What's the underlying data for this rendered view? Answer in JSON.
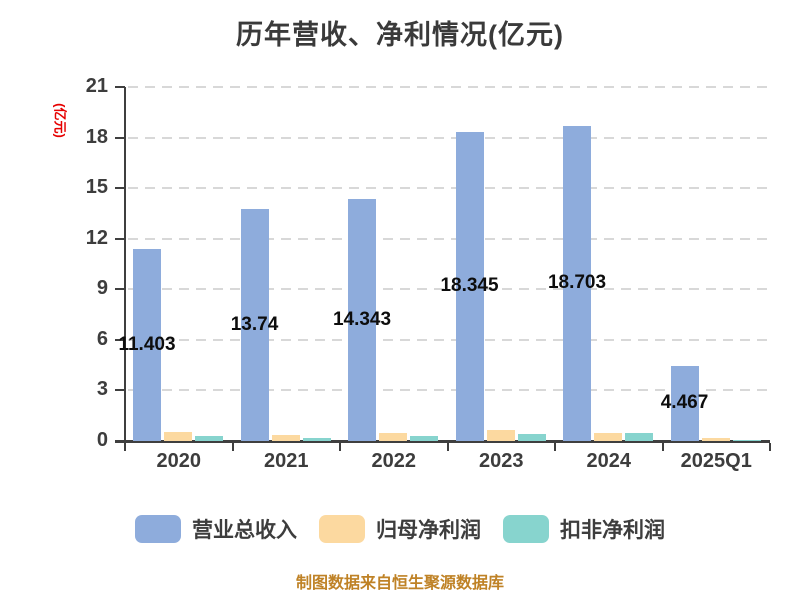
{
  "title": "历年营收、净利情况(亿元)",
  "y_axis": {
    "name": "(亿元)",
    "name_color": "#e60000",
    "ticks": [
      0,
      3,
      6,
      9,
      12,
      15,
      18,
      21
    ],
    "min": 0,
    "max": 21
  },
  "x_axis": {
    "categories": [
      "2020",
      "2021",
      "2022",
      "2023",
      "2024",
      "2025Q1"
    ]
  },
  "legend": [
    {
      "key": "revenue",
      "label": "营业总收入",
      "color": "#8EACDC"
    },
    {
      "key": "net-profit",
      "label": "归母净利润",
      "color": "#FCD9A0"
    },
    {
      "key": "non-gaap-net-profit",
      "label": "扣非净利润",
      "color": "#87D4CE"
    }
  ],
  "footer": "制图数据来自恒生聚源数据库",
  "colors": {
    "background": "#ffffff",
    "title_text": "#3a3a3a",
    "axis_line": "#3f3f3f",
    "tick_text": "#3d3d3d",
    "grid_line": "#d8d8d8",
    "data_label_text": "#0d0d0d",
    "footer_text": "#bf8226"
  },
  "chart_data": {
    "type": "bar",
    "title": "历年营收、净利情况(亿元)",
    "xlabel": "",
    "ylabel": "(亿元)",
    "ylim": [
      0,
      21
    ],
    "y_interval": 3,
    "grid": "horizontal dashed",
    "legend_position": "bottom",
    "categories": [
      "2020",
      "2021",
      "2022",
      "2023",
      "2024",
      "2025Q1"
    ],
    "series": [
      {
        "name": "营业总收入",
        "key": "revenue",
        "color": "#8EACDC",
        "values": [
          11.403,
          13.74,
          14.343,
          18.345,
          18.703,
          4.467
        ],
        "value_labels": [
          "11.403",
          "13.74",
          "14.343",
          "18.345",
          "18.703",
          "4.467"
        ],
        "labels_shown": true
      },
      {
        "name": "归母净利润",
        "key": "net-profit",
        "color": "#FCD9A0",
        "values": [
          0.54,
          0.36,
          0.5,
          0.65,
          0.45,
          0.15
        ],
        "labels_shown": false,
        "values_estimated_from_pixels": true
      },
      {
        "name": "扣非净利润",
        "key": "non-gaap-net-profit",
        "color": "#87D4CE",
        "values": [
          0.3,
          0.2,
          0.27,
          0.4,
          0.45,
          0.08
        ],
        "labels_shown": false,
        "values_estimated_from_pixels": true
      }
    ]
  }
}
